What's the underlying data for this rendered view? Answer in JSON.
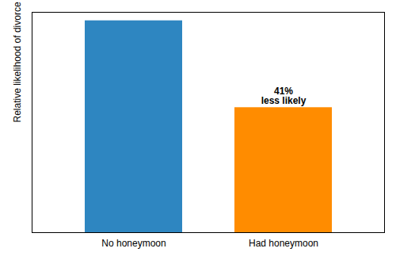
{
  "chart_data": {
    "type": "bar",
    "categories": [
      "No honeymoon",
      "Had honeymoon"
    ],
    "values": [
      1.0,
      0.59
    ],
    "colors": [
      "#2e86c1",
      "#ff8c00"
    ],
    "ylabel": "Relative likelihood of divorce",
    "ylim": [
      0,
      1.04
    ],
    "yticks": [],
    "tick_labels": "x",
    "grid": false,
    "annotations": [
      {
        "text": "41%\nless likely",
        "category": "Had honeymoon"
      }
    ]
  }
}
